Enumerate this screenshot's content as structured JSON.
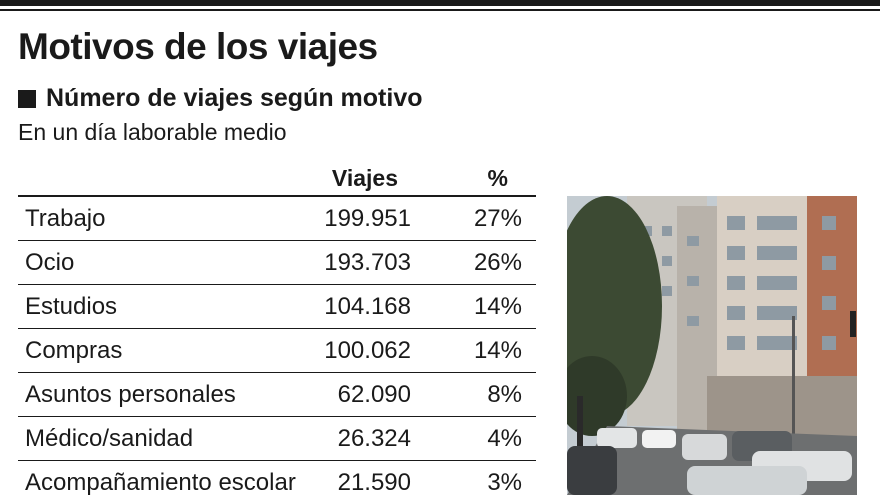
{
  "header": {
    "title": "Motivos de los viajes",
    "subtitle": "Número de viajes según motivo",
    "caption": "En un día laborable medio"
  },
  "chart_data": {
    "type": "table",
    "title": "Motivos de los viajes",
    "subtitle": "Número de viajes según motivo",
    "note": "En un día laborable medio",
    "columns": [
      "Viajes",
      "%"
    ],
    "rows": [
      {
        "label": "Trabajo",
        "viajes": "199.951",
        "pct": "27%"
      },
      {
        "label": "Ocio",
        "viajes": "193.703",
        "pct": "26%"
      },
      {
        "label": "Estudios",
        "viajes": "104.168",
        "pct": "14%"
      },
      {
        "label": "Compras",
        "viajes": "100.062",
        "pct": "14%"
      },
      {
        "label": "Asuntos personales",
        "viajes": "62.090",
        "pct": "8%"
      },
      {
        "label": "Médico/sanidad",
        "viajes": "26.324",
        "pct": "4%"
      },
      {
        "label": "Acompañamiento escolar",
        "viajes": "21.590",
        "pct": "3%"
      }
    ]
  },
  "colors": {
    "text": "#1a1a1a",
    "rule": "#1a1a1a",
    "background": "#ffffff"
  },
  "photo": {
    "icon": "street-traffic-photo"
  }
}
